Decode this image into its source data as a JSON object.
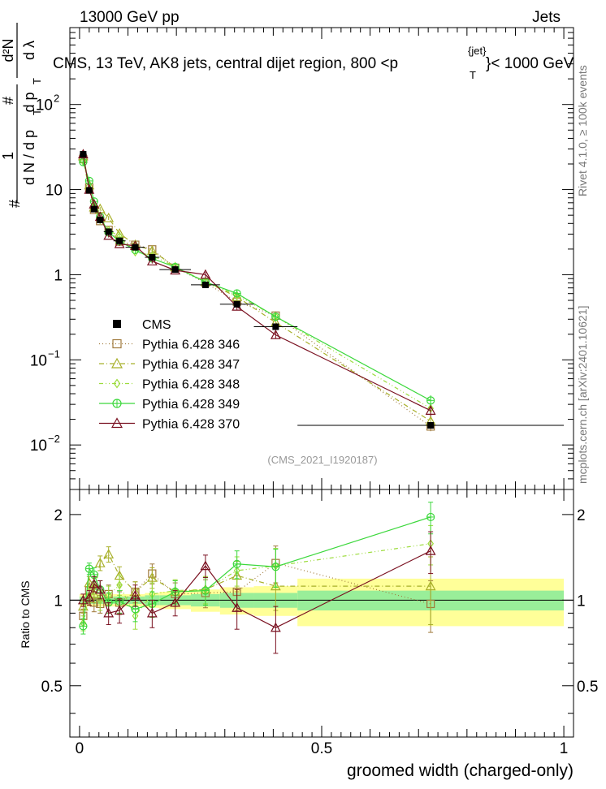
{
  "header": {
    "left": "13000 GeV pp",
    "right": "Jets",
    "title_main": "CMS, 13 TeV, AK8 jets, central dijet region, 800 <p",
    "title_sup": "{jet}",
    "title_sub": "T",
    "title_end": "}< 1000 GeV",
    "ylabel_pre": "#",
    "ylabel_frac1_num": "1",
    "ylabel_frac1_den": "d N / d p",
    "ylabel_frac1_den_sub": "T",
    "ylabel_frac2_num": "#",
    "ylabel_frac2_den": "d p",
    "ylabel_frac2_den_sub": "T",
    "ylabel_frac3_num": "d²N",
    "ylabel_frac3_den": "d λ",
    "side_top": "Rivet 4.1.0, ≥ 100k events",
    "side_bottom": "mcplots.cern.ch [arXiv:2401.10621]",
    "watermark": "(CMS_2021_I1920187)",
    "ratio_ylabel": "Ratio to CMS",
    "xlabel": "groomed width (charged-only)"
  },
  "axes": {
    "main_yticks": [
      {
        "v": 0.01,
        "base": "10",
        "exp": "−2"
      },
      {
        "v": 0.1,
        "base": "10",
        "exp": "−1"
      },
      {
        "v": 1,
        "base": "1",
        "exp": ""
      },
      {
        "v": 10,
        "base": "10",
        "exp": ""
      },
      {
        "v": 100,
        "base": "10",
        "exp": "2"
      }
    ],
    "ratio_yticks": [
      {
        "v": 0.5,
        "label": "0.5"
      },
      {
        "v": 1,
        "label": "1"
      },
      {
        "v": 2,
        "label": "2"
      }
    ],
    "xticks": [
      {
        "v": 0,
        "label": "0"
      },
      {
        "v": 0.5,
        "label": "0.5"
      },
      {
        "v": 1,
        "label": "1"
      }
    ]
  },
  "chart_data": {
    "type": "scatter",
    "title": "CMS, 13 TeV, AK8 jets, central dijet region, 800 <p_T^{jet}< 1000 GeV",
    "xlabel": "groomed width (charged-only)",
    "ylabel": "1/dN/dpT dpT d2N/dlambda",
    "xlim": [
      -0.02,
      1.02
    ],
    "ylim": [
      0.003,
      800
    ],
    "ratio_ylim": [
      0.33,
      2.45
    ],
    "bins": [
      {
        "x": 0.0075,
        "lo": 0.0,
        "hi": 0.015
      },
      {
        "x": 0.02,
        "lo": 0.015,
        "hi": 0.025
      },
      {
        "x": 0.03,
        "lo": 0.025,
        "hi": 0.035
      },
      {
        "x": 0.0425,
        "lo": 0.035,
        "hi": 0.05
      },
      {
        "x": 0.06,
        "lo": 0.05,
        "hi": 0.07
      },
      {
        "x": 0.0825,
        "lo": 0.07,
        "hi": 0.095
      },
      {
        "x": 0.115,
        "lo": 0.095,
        "hi": 0.135
      },
      {
        "x": 0.15,
        "lo": 0.135,
        "hi": 0.165
      },
      {
        "x": 0.1975,
        "lo": 0.165,
        "hi": 0.23
      },
      {
        "x": 0.26,
        "lo": 0.23,
        "hi": 0.29
      },
      {
        "x": 0.325,
        "lo": 0.29,
        "hi": 0.36
      },
      {
        "x": 0.405,
        "lo": 0.36,
        "hi": 0.45
      },
      {
        "x": 0.725,
        "lo": 0.45,
        "hi": 1.0
      }
    ],
    "band_inner": [
      0.03,
      0.03,
      0.03,
      0.03,
      0.03,
      0.03,
      0.03,
      0.04,
      0.04,
      0.05,
      0.06,
      0.06,
      0.08
    ],
    "band_outer": [
      0.05,
      0.05,
      0.05,
      0.05,
      0.05,
      0.05,
      0.05,
      0.06,
      0.07,
      0.09,
      0.11,
      0.12,
      0.19
    ],
    "series": [
      {
        "name": "CMS",
        "color": "#000000",
        "marker": "square_filled",
        "dash": "none",
        "values": [
          26,
          9.8,
          5.9,
          4.4,
          3.2,
          2.5,
          2.1,
          1.6,
          1.15,
          0.76,
          0.45,
          0.245,
          0.017
        ]
      },
      {
        "name": "Pythia 6.428 346",
        "color": "#a07a3c",
        "marker": "square_open",
        "dash": "1,3",
        "ratio": [
          0.88,
          1.08,
          0.98,
          0.97,
          1.05,
          0.98,
          1.07,
          1.24,
          1.05,
          1.06,
          1.07,
          1.35,
          0.97
        ],
        "errs": [
          0.05,
          0.06,
          0.07,
          0.07,
          0.08,
          0.09,
          0.09,
          0.1,
          0.1,
          0.12,
          0.15,
          0.2,
          0.2
        ]
      },
      {
        "name": "Pythia 6.428 347",
        "color": "#a8b02a",
        "marker": "triangle_open",
        "dash": "6,3,1,3",
        "ratio": [
          0.95,
          1.15,
          1.05,
          1.35,
          1.45,
          1.22,
          1.07,
          1.2,
          1.07,
          1.09,
          1.22,
          1.12,
          1.12
        ],
        "errs": [
          0.05,
          0.06,
          0.07,
          0.08,
          0.09,
          0.09,
          0.09,
          0.1,
          0.1,
          0.12,
          0.15,
          0.2,
          0.3
        ]
      },
      {
        "name": "Pythia 6.428 348",
        "color": "#9cdc3c",
        "marker": "diamond_open",
        "dash": "5,3,1,3,1,3",
        "ratio": [
          0.83,
          1.04,
          1.12,
          1.0,
          1.04,
          1.13,
          0.88,
          1.05,
          1.08,
          1.09,
          1.27,
          1.32,
          1.58
        ],
        "errs": [
          0.05,
          0.06,
          0.07,
          0.08,
          0.08,
          0.09,
          0.09,
          0.1,
          0.1,
          0.12,
          0.15,
          0.2,
          0.25
        ]
      },
      {
        "name": "Pythia 6.428 349",
        "color": "#3cd83c",
        "marker": "circle_open",
        "dash": "none",
        "ratio": [
          0.81,
          1.29,
          1.23,
          1.09,
          0.98,
          0.99,
          0.93,
          0.97,
          1.07,
          1.08,
          1.34,
          1.31,
          1.96
        ],
        "errs": [
          0.05,
          0.06,
          0.07,
          0.08,
          0.08,
          0.09,
          0.09,
          0.1,
          0.1,
          0.12,
          0.15,
          0.2,
          0.25
        ]
      },
      {
        "name": "Pythia 6.428 370",
        "color": "#7a1020",
        "marker": "triangle_open",
        "dash": "none",
        "ratio": [
          1.0,
          1.02,
          1.14,
          1.09,
          0.9,
          0.92,
          1.04,
          0.9,
          0.98,
          1.32,
          0.94,
          0.8,
          1.49
        ],
        "errs": [
          0.05,
          0.06,
          0.07,
          0.08,
          0.08,
          0.09,
          0.09,
          0.1,
          0.1,
          0.12,
          0.15,
          0.15,
          0.25
        ]
      }
    ]
  }
}
